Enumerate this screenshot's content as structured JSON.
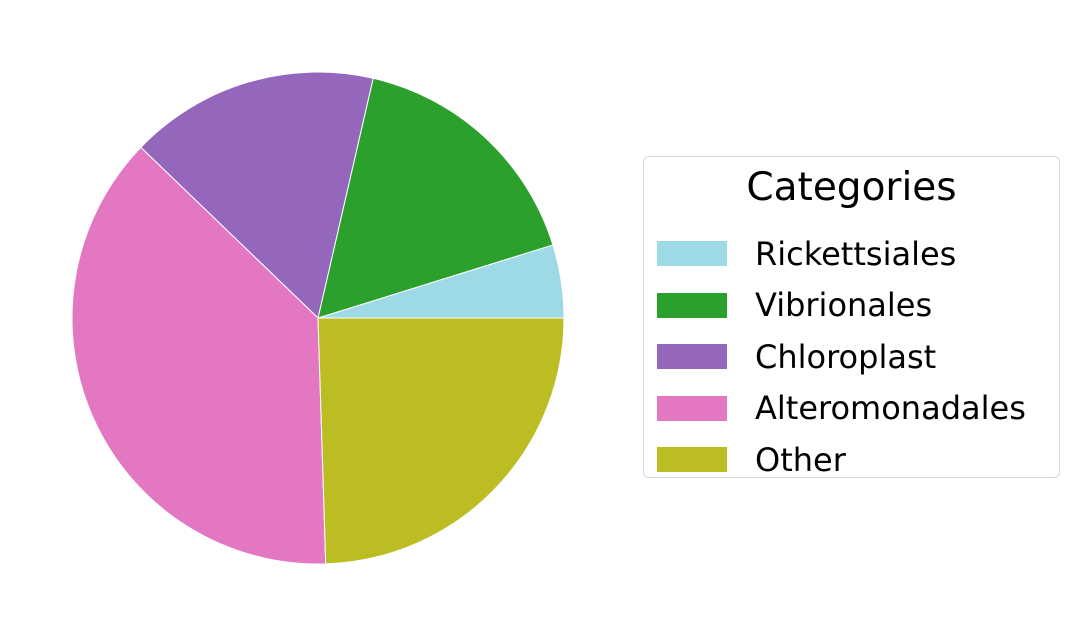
{
  "chart_data": {
    "type": "pie",
    "title": "",
    "legend_title": "Categories",
    "legend_position": "right",
    "start_angle_deg": 0,
    "direction": "counterclockwise",
    "slices": [
      {
        "label": "Rickettsiales",
        "value": 4.8,
        "color": "#9edae5"
      },
      {
        "label": "Vibrionales",
        "value": 16.6,
        "color": "#2ca02c"
      },
      {
        "label": "Chloroplast",
        "value": 16.4,
        "color": "#9467bd"
      },
      {
        "label": "Alteromonadales",
        "value": 37.7,
        "color": "#e377c2"
      },
      {
        "label": "Other",
        "value": 24.5,
        "color": "#bcbd22"
      }
    ]
  }
}
